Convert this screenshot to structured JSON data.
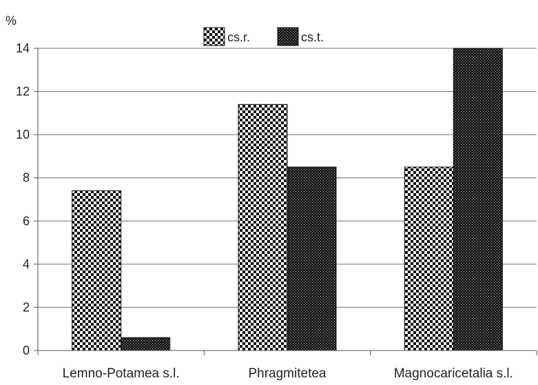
{
  "chart_data": {
    "type": "bar",
    "unit_label": "%",
    "categories": [
      "Lemno-Potamea s.l.",
      "Phragmitetea",
      "Magnocaricetalia s.l."
    ],
    "series": [
      {
        "name": "cs.r.",
        "values": [
          7.4,
          11.4,
          8.5
        ],
        "pattern": "checker"
      },
      {
        "name": "cs.t.",
        "values": [
          0.6,
          8.5,
          14
        ],
        "pattern": "dots"
      }
    ],
    "ylim": [
      0,
      14
    ],
    "yticks": [
      0,
      2,
      4,
      6,
      8,
      10,
      12,
      14
    ],
    "grid": true,
    "legend_position": "top-center"
  }
}
